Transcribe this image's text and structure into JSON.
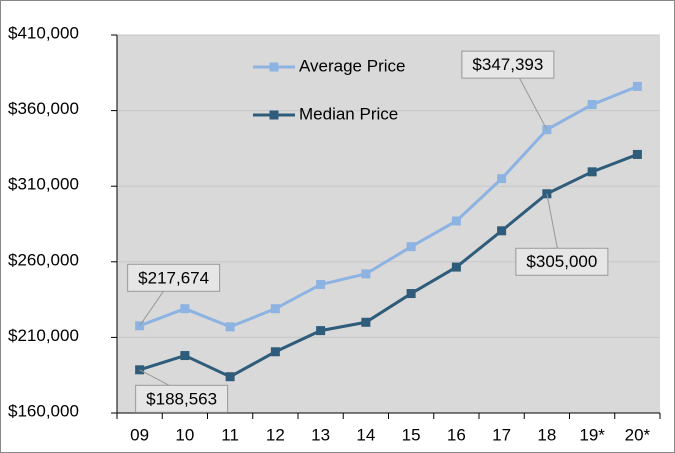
{
  "chart_data": {
    "type": "line",
    "categories": [
      "09",
      "10",
      "11",
      "12",
      "13",
      "14",
      "15",
      "16",
      "17",
      "18",
      "19*",
      "20*"
    ],
    "series": [
      {
        "name": "Average Price",
        "color": "#8db3e2",
        "values": [
          217674,
          229000,
          217000,
          229000,
          245000,
          252000,
          270000,
          287000,
          315000,
          347393,
          364000,
          376000
        ],
        "value_labels": [
          "$217,674",
          null,
          null,
          null,
          null,
          null,
          null,
          null,
          null,
          "$347,393",
          null,
          null
        ]
      },
      {
        "name": "Median Price",
        "color": "#2e5c7a",
        "values": [
          188563,
          198000,
          184000,
          200500,
          214500,
          220000,
          239000,
          256500,
          280500,
          305000,
          319500,
          331000
        ],
        "value_labels": [
          "$188,563",
          null,
          null,
          null,
          null,
          null,
          null,
          null,
          null,
          "$305,000",
          null,
          null
        ]
      }
    ],
    "ylim": [
      160000,
      410000
    ],
    "yticks": [
      {
        "value": 160000,
        "label": "$160,000"
      },
      {
        "value": 210000,
        "label": "$210,000"
      },
      {
        "value": 260000,
        "label": "$260,000"
      },
      {
        "value": 310000,
        "label": "$310,000"
      },
      {
        "value": 360000,
        "label": "$360,000"
      },
      {
        "value": 410000,
        "label": "$410,000"
      }
    ],
    "grid": true,
    "legend": "top-left"
  }
}
